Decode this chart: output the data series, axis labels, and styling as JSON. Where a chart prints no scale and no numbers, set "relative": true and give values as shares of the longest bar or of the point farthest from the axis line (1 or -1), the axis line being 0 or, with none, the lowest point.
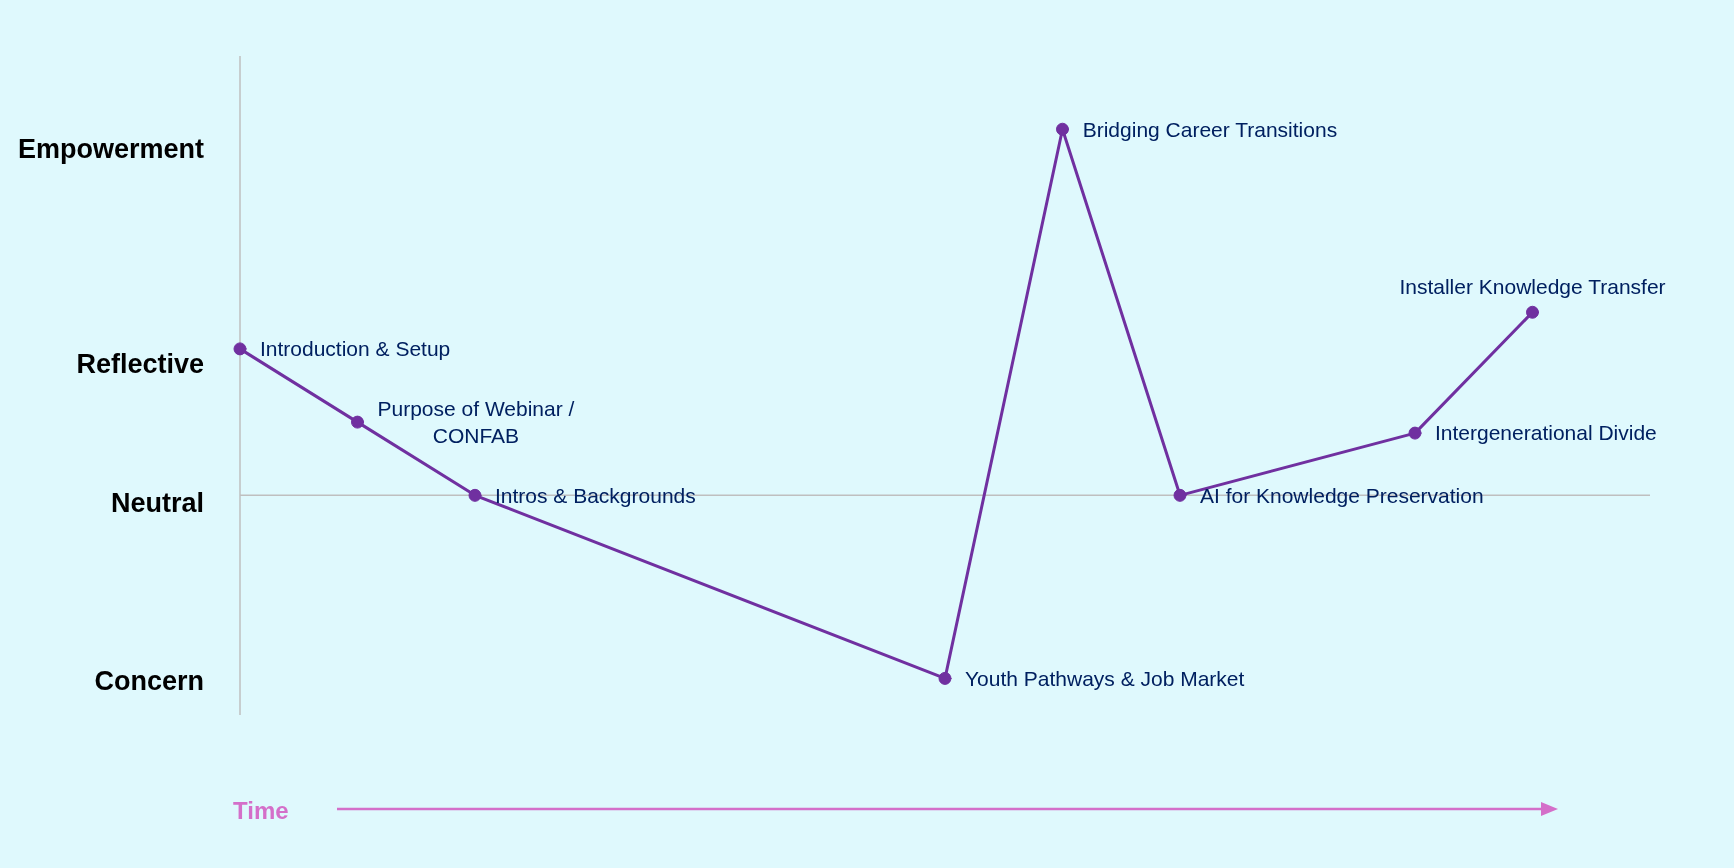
{
  "chart_data": {
    "type": "line",
    "relative": true,
    "xlabel": "Time",
    "categories": [
      null,
      null,
      null,
      null,
      null,
      null,
      null,
      null,
      null,
      null,
      null,
      null,
      null
    ],
    "series": [
      {
        "color": "#7030a0",
        "values": [
          0.4,
          0.2,
          0,
          null,
          null,
          null,
          -0.5,
          1,
          0,
          null,
          0.17,
          0.5,
          null
        ]
      }
    ],
    "annotations": [
      "Empowerment",
      "Reflective",
      "Neutral",
      "Concern",
      "Introduction & Setup",
      "Purpose of Webinar /\nCONFAB",
      "Intros & Backgrounds",
      "Youth Pathways & Job Market",
      "Bridging Career Transitions",
      "AI for Knowledge Preservation",
      "Intergenerational Divide",
      "Installer Knowledge Transfer"
    ],
    "ref_lines": [
      {
        "axis": "y",
        "value": 0,
        "color": "#bfbfbf"
      }
    ],
    "marker": "circle",
    "line_style": "solid"
  }
}
